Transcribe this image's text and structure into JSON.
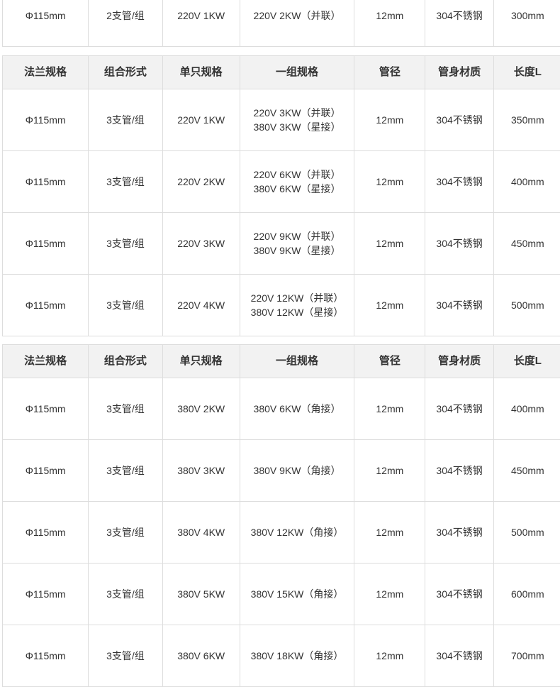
{
  "top_row": [
    "Φ115mm",
    "2支管/组",
    "220V 1KW",
    [
      "220V 2KW（并联）"
    ],
    "12mm",
    "304不锈钢",
    "300mm"
  ],
  "headers": [
    "法兰规格",
    "组合形式",
    "单只规格",
    "一组规格",
    "管径",
    "管身材质",
    "长度L"
  ],
  "table2": [
    [
      "Φ115mm",
      "3支管/组",
      "220V 1KW",
      [
        "220V 3KW（并联）",
        "380V 3KW（星接）"
      ],
      "12mm",
      "304不锈钢",
      "350mm"
    ],
    [
      "Φ115mm",
      "3支管/组",
      "220V 2KW",
      [
        "220V 6KW（并联）",
        "380V 6KW（星接）"
      ],
      "12mm",
      "304不锈钢",
      "400mm"
    ],
    [
      "Φ115mm",
      "3支管/组",
      "220V 3KW",
      [
        "220V 9KW（并联）",
        "380V 9KW（星接）"
      ],
      "12mm",
      "304不锈钢",
      "450mm"
    ],
    [
      "Φ115mm",
      "3支管/组",
      "220V 4KW",
      [
        "220V 12KW（并联）",
        "380V 12KW（星接）"
      ],
      "12mm",
      "304不锈钢",
      "500mm"
    ]
  ],
  "table3": [
    [
      "Φ115mm",
      "3支管/组",
      "380V 2KW",
      [
        "380V 6KW（角接）"
      ],
      "12mm",
      "304不锈钢",
      "400mm"
    ],
    [
      "Φ115mm",
      "3支管/组",
      "380V 3KW",
      [
        "380V 9KW（角接）"
      ],
      "12mm",
      "304不锈钢",
      "450mm"
    ],
    [
      "Φ115mm",
      "3支管/组",
      "380V 4KW",
      [
        "380V 12KW（角接）"
      ],
      "12mm",
      "304不锈钢",
      "500mm"
    ],
    [
      "Φ115mm",
      "3支管/组",
      "380V 5KW",
      [
        "380V 15KW（角接）"
      ],
      "12mm",
      "304不锈钢",
      "600mm"
    ],
    [
      "Φ115mm",
      "3支管/组",
      "380V 6KW",
      [
        "380V 18KW（角接）"
      ],
      "12mm",
      "304不锈钢",
      "700mm"
    ]
  ]
}
